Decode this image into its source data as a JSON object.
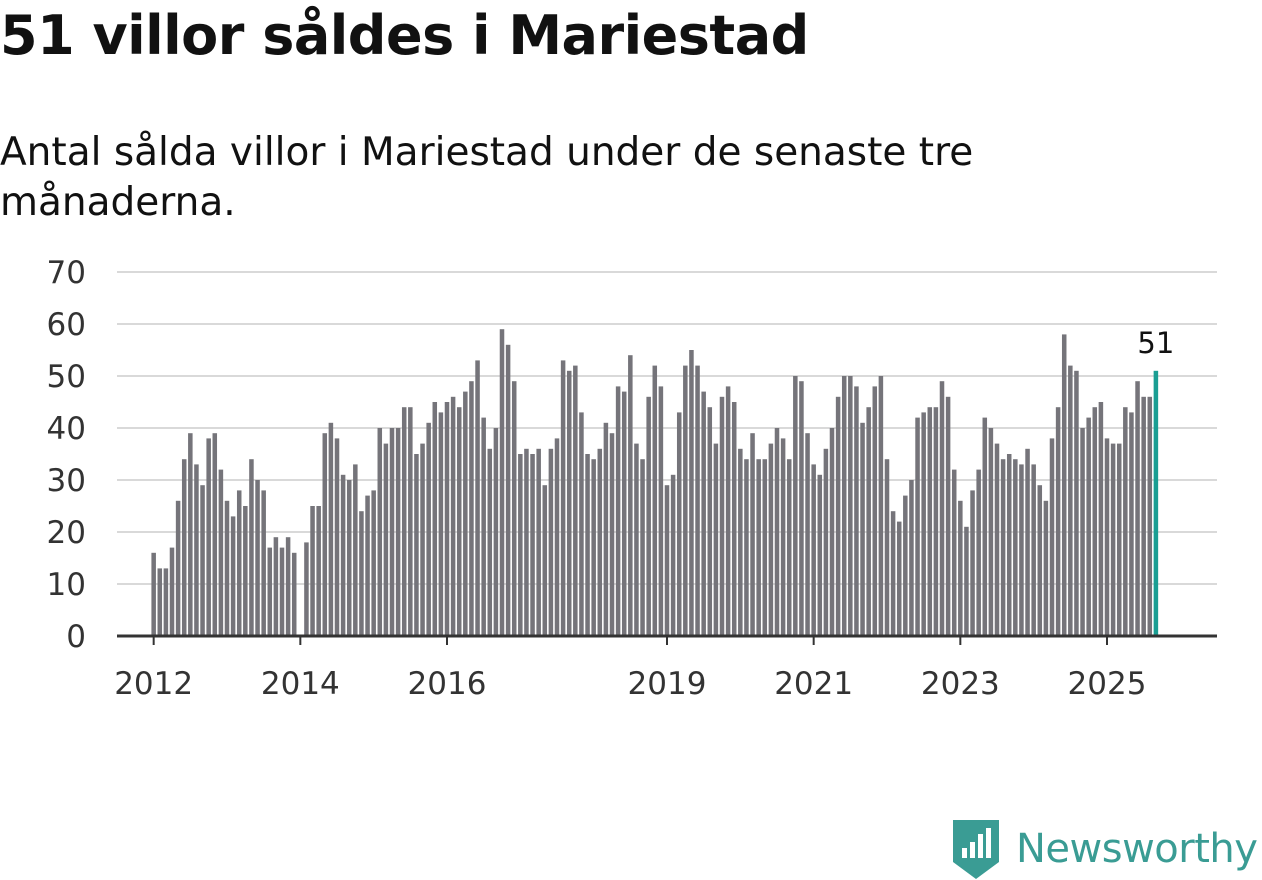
{
  "header": {
    "title": "51 villor såldes i Mariestad",
    "subtitle": "Antal sålda villor i Mariestad under de senaste tre månaderna."
  },
  "brand": {
    "name": "Newsworthy",
    "color": "#3a9c94"
  },
  "chart_data": {
    "type": "bar",
    "title": "51 villor såldes i Mariestad",
    "subtitle": "Antal sålda villor i Mariestad under de senaste tre månaderna.",
    "xlabel": "",
    "ylabel": "",
    "ylim": [
      0,
      70
    ],
    "yticks": [
      0,
      10,
      20,
      30,
      40,
      50,
      60,
      70
    ],
    "grid": true,
    "x_range": [
      2011.5,
      2026.5
    ],
    "xticks": [
      {
        "label": "2012",
        "value": 2012
      },
      {
        "label": "2014",
        "value": 2014
      },
      {
        "label": "2016",
        "value": 2016
      },
      {
        "label": "2019",
        "value": 2019
      },
      {
        "label": "2021",
        "value": 2021
      },
      {
        "label": "2023",
        "value": 2023
      },
      {
        "label": "2025",
        "value": 2025
      }
    ],
    "start": {
      "year": 2012,
      "month": 1
    },
    "bar_color": "#75747a",
    "highlight_color": "#1a9e93",
    "highlight_label": "51",
    "values": [
      16,
      13,
      13,
      17,
      26,
      34,
      39,
      33,
      29,
      38,
      39,
      32,
      26,
      23,
      28,
      25,
      34,
      30,
      28,
      17,
      19,
      17,
      19,
      16,
      null,
      18,
      25,
      25,
      39,
      41,
      38,
      31,
      30,
      33,
      24,
      27,
      28,
      40,
      37,
      40,
      40,
      44,
      44,
      35,
      37,
      41,
      45,
      43,
      45,
      46,
      44,
      47,
      49,
      53,
      42,
      36,
      40,
      59,
      56,
      49,
      35,
      36,
      35,
      36,
      29,
      36,
      38,
      53,
      51,
      52,
      43,
      35,
      34,
      36,
      41,
      39,
      48,
      47,
      54,
      37,
      34,
      46,
      52,
      48,
      29,
      31,
      43,
      52,
      55,
      52,
      47,
      44,
      37,
      46,
      48,
      45,
      36,
      34,
      39,
      34,
      34,
      37,
      40,
      38,
      34,
      50,
      49,
      39,
      33,
      31,
      36,
      40,
      46,
      50,
      50,
      48,
      41,
      44,
      48,
      50,
      34,
      24,
      22,
      27,
      30,
      42,
      43,
      44,
      44,
      49,
      46,
      32,
      26,
      21,
      28,
      32,
      42,
      40,
      37,
      34,
      35,
      34,
      33,
      36,
      33,
      29,
      26,
      38,
      44,
      58,
      52,
      51,
      40,
      42,
      44,
      45,
      38,
      37,
      37,
      44,
      43,
      49,
      46,
      46,
      51
    ]
  }
}
